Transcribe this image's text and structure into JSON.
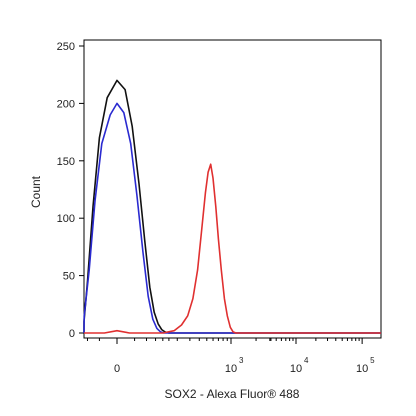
{
  "chart_data": {
    "type": "line",
    "title": "",
    "xlabel": "SOX2 - Alexa Fluor® 488",
    "ylabel": "Count",
    "ylim": [
      0,
      250
    ],
    "y_ticks": [
      "0",
      "50",
      "100",
      "150",
      "200",
      "250"
    ],
    "x_ticks": [
      {
        "value": 0,
        "base": "0",
        "exp": ""
      },
      {
        "value": 1000,
        "base": "10",
        "exp": "3"
      },
      {
        "value": 10000,
        "base": "10",
        "exp": "4"
      },
      {
        "value": 100000,
        "base": "10",
        "exp": "5"
      }
    ],
    "x_scale": "biexponential",
    "series": [
      {
        "color": "#111111",
        "points": [
          [
            -160,
            0
          ],
          [
            -120,
            0
          ],
          [
            -90,
            2
          ],
          [
            -75,
            10
          ],
          [
            -60,
            45
          ],
          [
            -45,
            110
          ],
          [
            -30,
            170
          ],
          [
            -15,
            205
          ],
          [
            0,
            220
          ],
          [
            12,
            212
          ],
          [
            25,
            180
          ],
          [
            40,
            130
          ],
          [
            55,
            80
          ],
          [
            70,
            40
          ],
          [
            85,
            18
          ],
          [
            100,
            8
          ],
          [
            115,
            3
          ],
          [
            130,
            1
          ],
          [
            150,
            0
          ],
          [
            300,
            0
          ],
          [
            1000,
            0
          ],
          [
            100000,
            0
          ],
          [
            262000,
            0
          ]
        ]
      },
      {
        "color": "#2a2ad0",
        "points": [
          [
            -160,
            0
          ],
          [
            -110,
            0
          ],
          [
            -85,
            3
          ],
          [
            -70,
            15
          ],
          [
            -55,
            55
          ],
          [
            -40,
            115
          ],
          [
            -25,
            165
          ],
          [
            -10,
            190
          ],
          [
            0,
            200
          ],
          [
            10,
            192
          ],
          [
            22,
            165
          ],
          [
            35,
            120
          ],
          [
            50,
            70
          ],
          [
            65,
            32
          ],
          [
            80,
            12
          ],
          [
            95,
            4
          ],
          [
            110,
            1
          ],
          [
            125,
            0
          ],
          [
            300,
            0
          ],
          [
            1000,
            0
          ],
          [
            100000,
            0
          ],
          [
            262000,
            0
          ]
        ]
      },
      {
        "color": "#e03030",
        "points": [
          [
            -160,
            0
          ],
          [
            -20,
            0
          ],
          [
            0,
            2
          ],
          [
            20,
            0
          ],
          [
            120,
            0
          ],
          [
            180,
            2
          ],
          [
            230,
            7
          ],
          [
            280,
            15
          ],
          [
            330,
            30
          ],
          [
            380,
            55
          ],
          [
            430,
            90
          ],
          [
            480,
            122
          ],
          [
            520,
            140
          ],
          [
            560,
            147
          ],
          [
            600,
            135
          ],
          [
            650,
            110
          ],
          [
            700,
            82
          ],
          [
            760,
            55
          ],
          [
            830,
            30
          ],
          [
            900,
            15
          ],
          [
            980,
            5
          ],
          [
            1060,
            1
          ],
          [
            1150,
            0
          ],
          [
            2000,
            0
          ],
          [
            10000,
            0
          ],
          [
            100000,
            0
          ],
          [
            262000,
            0
          ]
        ]
      }
    ],
    "grid": false,
    "legend": "none"
  }
}
